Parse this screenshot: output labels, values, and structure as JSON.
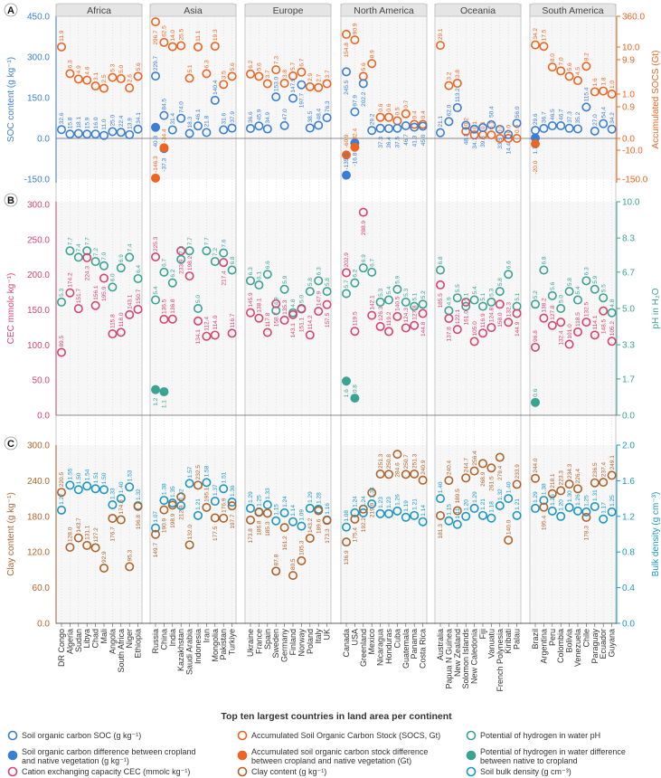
{
  "chart_data": {
    "type": "scatter",
    "x_title": "Top ten largest countries in land area per continent",
    "continents": [
      {
        "name": "Africa",
        "countries": [
          "DR Congo",
          "Algeria",
          "Sudan",
          "Libya",
          "Chad",
          "Mali",
          "Angola",
          "South Africa",
          "Niger",
          "Ethiopia"
        ]
      },
      {
        "name": "Asia",
        "countries": [
          "Russia",
          "China",
          "India",
          "Kazakhstan",
          "Saudi Arabia",
          "Indonesia",
          "Iran",
          "Mongolia",
          "Pakistan",
          "Turkiye"
        ]
      },
      {
        "name": "Europe",
        "countries": [
          "Ukraine",
          "France",
          "Spain",
          "Sweden",
          "Germany",
          "Finland",
          "Norway",
          "Poland",
          "Italy",
          "UK"
        ]
      },
      {
        "name": "North America",
        "countries": [
          "Canada",
          "USA",
          "Greenland",
          "Mexico",
          "Nicaragua",
          "Honduras",
          "Cuba",
          "Guatemala",
          "Panama",
          "Costa Rica"
        ]
      },
      {
        "name": "Oceania",
        "countries": [
          "Australia",
          "Papua N Guinea",
          "New Zealand",
          "Solomon Islands",
          "New Caledonia",
          "Fiji",
          "Vanuatu",
          "French Polynesia",
          "Kiribati",
          "Palau"
        ]
      },
      {
        "name": "South America",
        "countries": [
          "Brazil",
          "Argentina",
          "Peru",
          "Colombia",
          "Bolivia",
          "Venezuela",
          "Chile",
          "Paraguay",
          "Ecuador",
          "Guyana"
        ]
      }
    ],
    "panels": [
      {
        "letter": "A",
        "left_axis": {
          "label": "SOC content (g kg⁻¹)",
          "ticks": [
            "450.0",
            "300.0",
            "150.0",
            "0.0",
            "-150.0"
          ],
          "tick_values": [
            450,
            300,
            150,
            0,
            -150
          ],
          "color": "#3a7fd5"
        },
        "right_axis": {
          "label": "Accumulated SOCS (Gt)",
          "ticks": [
            "360.0",
            "10.0",
            "9.9",
            "1.0",
            "0.9",
            "0.0",
            "-10.0",
            "-150.0"
          ],
          "tick_values": [
            360,
            10,
            9.9,
            1,
            0.9,
            0,
            -10,
            -150
          ],
          "color": "#ee6420"
        },
        "series": [
          {
            "name": "Accumulated Soil Organic Carbon Stock (SOCS, Gt)",
            "axis": "right",
            "color": "#ee6420",
            "filled": false,
            "values": [
              [
                11.9,
                6.3,
                4.9,
                4.6,
                3.1,
                2.5,
                5.3,
                5.0,
                2.6,
                5.6
              ],
              [
                296.7,
                62.5,
                14.0,
                25.5,
                5.1,
                11.1,
                6.3,
                19.3,
                3.5,
                5.6
              ],
              [
                6.2,
                5.6,
                3.7,
                7.3,
                3.8,
                5.7,
                6.7,
                2.9,
                2.7,
                3.7
              ],
              [
                154.8,
                90.9,
                5.6,
                8.9,
                0.6,
                0.6,
                0.5,
                0.7,
                0.4,
                0.4
              ],
              [
                29.1,
                3.2,
                3.8,
                0.2,
                0.1,
                0.1,
                0.1,
                0.0,
                0.0,
                0.0
              ],
              [
                34.2,
                17.5,
                8.0,
                7.0,
                5.6,
                4.5,
                8.2,
                1.6,
                1.8,
                1.0
              ]
            ]
          },
          {
            "name": "Soil organic carbon SOC (g kg⁻¹)",
            "axis": "left",
            "color": "#3a7fd5",
            "filled": false,
            "values": [
              [
                32.6,
                15.8,
                18.1,
                15.9,
                16.0,
                11.0,
                25.0,
                22.4,
                13.9,
                34.1
              ],
              [
                229.7,
                84.5,
                31.4,
                74.0,
                18.3,
                46.1,
                21.8,
                140.4,
                31.6,
                37.9
              ],
              [
                36.6,
                45.9,
                34.9,
                153.0,
                47.0,
                147.9,
                197.7,
                38.5,
                48.4,
                76.3
              ],
              [
                245.5,
                97.9,
                202.2,
                29.2,
                37.3,
                36.4,
                37.5,
                46.7,
                41.3,
                45.0
              ],
              [
                21.1,
                62.0,
                113.2,
                48.3,
                34.1,
                39.8,
                50.4,
                33.5,
                14.4,
                56.0
              ],
              [
                29.6,
                36.7,
                46.5,
                46.7,
                37.3,
                35.2,
                115.4,
                27.0,
                54.4,
                34.2
              ]
            ]
          },
          {
            "name": "Soil organic carbon difference between cropland and native vegetation (g kg⁻¹)",
            "axis": "left",
            "color": "#3a7fd5",
            "filled": true,
            "points": [
              {
                "continent": 1,
                "index": 0,
                "value": 40.8
              },
              {
                "continent": 1,
                "index": 1,
                "value": -37.3
              },
              {
                "continent": 3,
                "index": 0,
                "value": -135.5
              },
              {
                "continent": 3,
                "index": 1,
                "value": -16.8
              },
              {
                "continent": 5,
                "index": 0,
                "value": 1.7
              }
            ]
          },
          {
            "name": "Accumulated soil organic carbon stock difference between cropland and native vegetation (Gt)",
            "axis": "left",
            "color": "#ee6420",
            "filled": true,
            "points": [
              {
                "continent": 1,
                "index": 0,
                "value": -146.3
              },
              {
                "continent": 1,
                "index": 1,
                "value": -34.4
              },
              {
                "continent": 3,
                "index": 0,
                "value": -60.9
              },
              {
                "continent": 3,
                "index": 1,
                "value": -32.4
              },
              {
                "continent": 5,
                "index": 0,
                "value": -20.0
              }
            ]
          }
        ]
      },
      {
        "letter": "B",
        "left_axis": {
          "label": "CEC mmolc kg⁻¹)",
          "ticks": [
            "300.0",
            "250.0",
            "200.0",
            "150.0",
            "100.0",
            "50.0",
            "0.0"
          ],
          "tick_values": [
            300,
            250,
            200,
            150,
            100,
            50,
            0
          ],
          "color": "#d9436e"
        },
        "right_axis": {
          "label": "pH in H₂O",
          "ticks": [
            "10.0",
            "8.3",
            "6.7",
            "5.0",
            "3.3",
            "1.7",
            "0.0"
          ],
          "tick_values": [
            10,
            8.3,
            6.7,
            5,
            3.3,
            1.7,
            0
          ],
          "color": "#3aa392"
        },
        "series": [
          {
            "name": "Potential of hydrogen in water pH",
            "axis": "right",
            "color": "#3aa392",
            "filled": false,
            "values": [
              [
                5.3,
                7.7,
                7.4,
                7.7,
                7.2,
                7.0,
                6.0,
                6.9,
                7.4,
                6.4
              ],
              [
                5.4,
                6.7,
                6.2,
                7.3,
                7.7,
                5.0,
                7.7,
                7.2,
                7.6,
                6.8
              ],
              [
                6.3,
                6.1,
                6.6,
                4.9,
                5.9,
                4.8,
                5.0,
                5.8,
                6.3,
                5.8
              ],
              [
                5.7,
                6.2,
                6.9,
                6.7,
                5.3,
                5.4,
                5.9,
                5.3,
                5.1,
                5.2
              ],
              [
                6.8,
                4.9,
                5.5,
                5.1,
                5.4,
                5.1,
                5.3,
                5.8,
                6.6,
                5.1
              ],
              [
                5.2,
                6.8,
                5.6,
                5.0,
                5.8,
                5.4,
                6.3,
                5.9,
                5.5,
                4.8
              ]
            ]
          },
          {
            "name": "Cation exchanging capacity CEC (mmolc kg⁻¹)",
            "axis": "left",
            "color": "#d9436e",
            "filled": false,
            "values": [
              [
                89.5,
                174.2,
                151.7,
                224.3,
                156.1,
                195.0,
                115.8,
                118.0,
                143.1,
                150.7
              ],
              [
                225.3,
                136.5,
                136.8,
                233.9,
                198.2,
                134.1,
                112.4,
                114.0,
                217.4,
                116.7
              ],
              [
                145.9,
                138.1,
                117.8,
                158.7,
                135.3,
                143.1,
                151.1,
                114.2,
                147.9,
                157.5
              ],
              [
                202.9,
                119.5,
                288.9,
                142.1,
                126.3,
                119.2,
                140.5,
                124.3,
                127.8,
                144.8
              ],
              [
                185.5,
                137.8,
                122.1,
                161.0,
                105.0,
                116.9,
                124.8,
                158.0,
                132.3,
                144.9
              ],
              [
                96.8,
                138.2,
                127.8,
                132.4,
                101.0,
                118.5,
                132.5,
                114.1,
                148.5,
                105.2
              ]
            ]
          },
          {
            "name": "Potential of hydrogen in water difference between native to cropland",
            "axis": "right",
            "color": "#3aa392",
            "filled": true,
            "points": [
              {
                "continent": 1,
                "index": 0,
                "value": 1.2
              },
              {
                "continent": 1,
                "index": 1,
                "value": 1.1
              },
              {
                "continent": 3,
                "index": 0,
                "value": 1.6
              },
              {
                "continent": 3,
                "index": 1,
                "value": 0.8
              },
              {
                "continent": 5,
                "index": 0,
                "value": 0.6
              }
            ]
          }
        ]
      },
      {
        "letter": "C",
        "left_axis": {
          "label": "Clay content (g kg⁻¹)",
          "ticks": [
            "300.0",
            "240.0",
            "180.0",
            "120.0",
            "60.0",
            "0.0"
          ],
          "tick_values": [
            300,
            240,
            180,
            120,
            60,
            0
          ],
          "color": "#b0632b"
        },
        "right_axis": {
          "label": "Bulk density (g cm⁻³)",
          "ticks": [
            "2.0",
            "1.6",
            "1.2",
            "0.8",
            "0.4",
            "0.0"
          ],
          "tick_values": [
            2,
            1.6,
            1.2,
            0.8,
            0.4,
            0
          ],
          "color": "#1a97c4"
        },
        "series": [
          {
            "name": "Soil bulk density (g cm⁻³)",
            "axis": "right",
            "color": "#1a97c4",
            "filled": false,
            "decimals": 2,
            "values": [
              [
                1.27,
                1.55,
                1.5,
                1.54,
                1.51,
                1.5,
                1.33,
                1.4,
                1.53,
                1.32
              ],
              [
                1.07,
                1.38,
                1.35,
                1.32,
                1.57,
                1.21,
                1.58,
                1.37,
                1.51,
                1.36
              ],
              [
                1.29,
                1.25,
                1.33,
                1.15,
                1.24,
                1.14,
                1.09,
                1.29,
                1.28,
                1.16
              ],
              [
                1.08,
                1.24,
                1.24,
                1.34,
                1.23,
                1.23,
                1.26,
                1.19,
                1.21,
                1.14
              ],
              [
                1.4,
                1.15,
                1.11,
                1.2,
                1.29,
                1.21,
                1.18,
                1.32,
                1.4,
                1.21
              ],
              [
                1.29,
                1.38,
                1.26,
                1.2,
                1.3,
                1.26,
                1.25,
                1.31,
                1.17,
                1.25
              ]
            ]
          },
          {
            "name": "Clay content (g kg⁻¹)",
            "axis": "left",
            "color": "#b0632b",
            "filled": false,
            "values": [
              [
                220.5,
                128.0,
                143.7,
                131.1,
                127.2,
                92.9,
                176.7,
                174.3,
                95.3,
                196.8
              ],
              [
                149.7,
                190.9,
                198.9,
                212.8,
                132.0,
                232.5,
                195.1,
                177.5,
                176.9,
                197.7
              ],
              [
                173.8,
                186.8,
                185.3,
                87.8,
                161.2,
                80.5,
                105.3,
                143.2,
                189.6,
                173.3
              ],
              [
                136.9,
                175.4,
                192.2,
                219.9,
                251.3,
                250.8,
                284.6,
                250.7,
                251.3,
                240.9
              ],
              [
                181.3,
                240.4,
                189.5,
                244.7,
                256.4,
                268.9,
                261.5,
                279.4,
                140.0,
                233.9
              ],
              [
                244.0,
                195.4,
                218.1,
                223.3,
                234.3,
                226.4,
                178.3,
                236.5,
                237.4,
                249.1
              ]
            ]
          }
        ]
      }
    ],
    "legend": [
      {
        "label": "Soil organic carbon SOC (g kg⁻¹)",
        "color": "#3a7fd5",
        "filled": false
      },
      {
        "label": "Accumulated Soil Organic Carbon Stock (SOCS, Gt)",
        "color": "#ee6420",
        "filled": false
      },
      {
        "label": "Potential of hydrogen in water pH",
        "color": "#3aa392",
        "filled": false
      },
      {
        "label": "Soil organic carbon difference between cropland|and native vegetation (g kg⁻¹)",
        "color": "#3a7fd5",
        "filled": true
      },
      {
        "label": "Accumulated soil organic carbon stock difference|between cropland and native vegetation (Gt)",
        "color": "#ee6420",
        "filled": true
      },
      {
        "label": "Potential of hydrogen in water difference|between native to cropland",
        "color": "#3aa392",
        "filled": true
      },
      {
        "label": "Cation exchanging capacity CEC (mmolc kg⁻¹)",
        "color": "#d9436e",
        "filled": false
      },
      {
        "label": "Clay content (g kg⁻¹)",
        "color": "#b0632b",
        "filled": false
      },
      {
        "label": "Soil bulk density (g cm⁻³)",
        "color": "#1a97c4",
        "filled": false
      }
    ]
  }
}
